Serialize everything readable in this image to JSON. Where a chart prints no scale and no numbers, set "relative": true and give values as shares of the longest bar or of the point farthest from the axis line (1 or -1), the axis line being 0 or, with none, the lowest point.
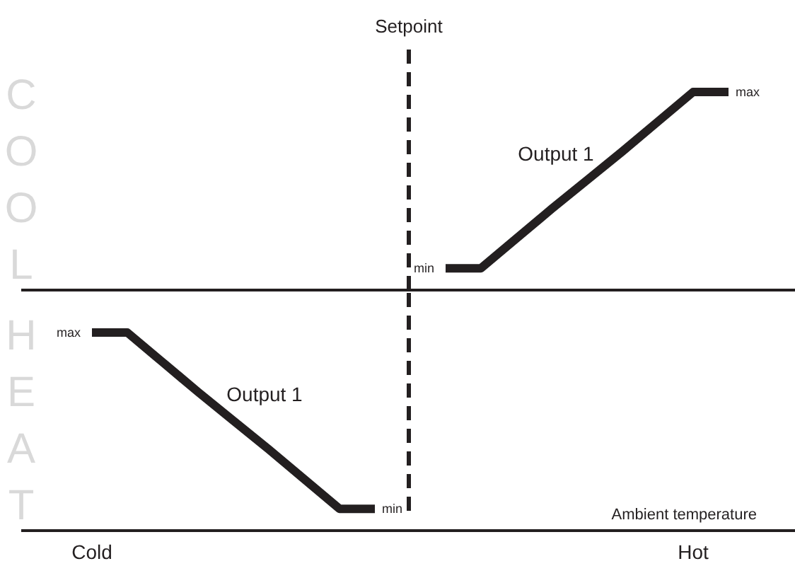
{
  "chart_data": [
    {
      "type": "line",
      "relative": true,
      "ylabel": "COOL",
      "tick_labels": false,
      "line_style": "solid",
      "marker": "none",
      "categories": [
        null,
        null,
        null,
        null,
        null,
        null,
        null,
        null,
        null,
        null,
        null,
        null,
        null,
        null,
        null,
        null,
        null,
        null,
        null,
        null,
        null,
        null
      ],
      "series": [
        {
          "color": "#231f20",
          "values": [
            null,
            null,
            null,
            null,
            null,
            null,
            null,
            null,
            null,
            null,
            null,
            null,
            0.11,
            0.11,
            0.26,
            0.41,
            0.555,
            0.7,
            0.85,
            1,
            1,
            null
          ]
        }
      ],
      "annotations": [
        "Output 1",
        "min",
        "max",
        "Setpoint"
      ]
    },
    {
      "type": "line",
      "relative": true,
      "ylabel": "HEAT",
      "xlabel": "Ambient temperature",
      "tick_labels": "x",
      "line_style": "solid",
      "marker": "none",
      "categories": [
        null,
        null,
        "Cold",
        null,
        null,
        null,
        null,
        null,
        null,
        null,
        null,
        null,
        null,
        null,
        null,
        null,
        null,
        null,
        null,
        "Hot",
        null,
        null
      ],
      "series": [
        {
          "color": "#231f20",
          "values": [
            null,
            null,
            1,
            1,
            0.85,
            0.7,
            0.555,
            0.41,
            0.26,
            0.11,
            0.11,
            null,
            null,
            null,
            null,
            null,
            null,
            null,
            null,
            null,
            null,
            null
          ]
        }
      ],
      "annotations": [
        "Output 1",
        "max",
        "min"
      ]
    }
  ]
}
